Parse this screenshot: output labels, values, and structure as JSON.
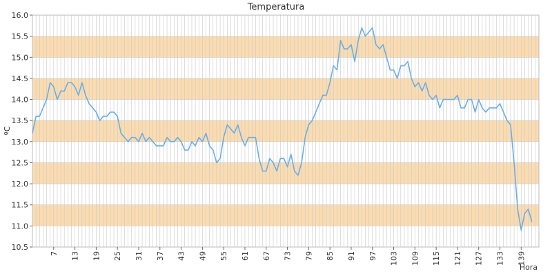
{
  "chart_data": {
    "type": "line",
    "title": "Temperatura",
    "xlabel": "Hora",
    "ylabel": "ºC",
    "xlim": [
      1,
      144
    ],
    "ylim": [
      10.5,
      16.0
    ],
    "x_ticks": [
      7,
      13,
      19,
      25,
      31,
      37,
      43,
      49,
      55,
      61,
      67,
      73,
      79,
      85,
      91,
      97,
      103,
      109,
      115,
      121,
      127,
      133,
      139
    ],
    "y_ticks": [
      "10.5",
      "11.0",
      "11.5",
      "12.0",
      "12.5",
      "13.0",
      "13.5",
      "14.0",
      "14.5",
      "15.0",
      "15.5",
      "16.0"
    ],
    "grid": true,
    "legend": "none",
    "band_color": "#fbdcb0",
    "grid_color": "#c8c8c8",
    "line_color": "#6aaee8",
    "series": [
      {
        "values": [
          13.2,
          13.6,
          13.6,
          13.8,
          14.0,
          14.4,
          14.3,
          14.0,
          14.2,
          14.2,
          14.4,
          14.4,
          14.3,
          14.1,
          14.4,
          14.1,
          13.9,
          13.8,
          13.7,
          13.5,
          13.6,
          13.6,
          13.7,
          13.7,
          13.6,
          13.2,
          13.1,
          13.0,
          13.1,
          13.1,
          13.0,
          13.2,
          13.0,
          13.1,
          13.0,
          12.9,
          12.9,
          12.9,
          13.1,
          13.0,
          13.0,
          13.1,
          13.0,
          12.8,
          12.8,
          13.0,
          12.9,
          13.1,
          13.0,
          13.2,
          12.9,
          12.8,
          12.5,
          12.6,
          13.1,
          13.4,
          13.3,
          13.2,
          13.4,
          13.1,
          12.9,
          13.1,
          13.1,
          13.1,
          12.6,
          12.3,
          12.3,
          12.6,
          12.5,
          12.3,
          12.6,
          12.6,
          12.4,
          12.7,
          12.3,
          12.2,
          12.5,
          13.1,
          13.4,
          13.5,
          13.7,
          13.9,
          14.1,
          14.1,
          14.4,
          14.8,
          14.7,
          15.4,
          15.2,
          15.2,
          15.3,
          14.9,
          15.4,
          15.7,
          15.5,
          15.6,
          15.7,
          15.3,
          15.2,
          15.3,
          15.0,
          14.7,
          14.7,
          14.5,
          14.8,
          14.8,
          14.9,
          14.5,
          14.3,
          14.4,
          14.2,
          14.4,
          14.1,
          14.0,
          14.1,
          13.8,
          14.0,
          14.0,
          14.0,
          14.0,
          14.1,
          13.8,
          13.8,
          14.0,
          14.0,
          13.7,
          14.0,
          13.8,
          13.7,
          13.8,
          13.8,
          13.8,
          13.9,
          13.7,
          13.5,
          13.4,
          12.5,
          11.4,
          10.9,
          11.3,
          11.4,
          11.1
        ]
      }
    ]
  }
}
